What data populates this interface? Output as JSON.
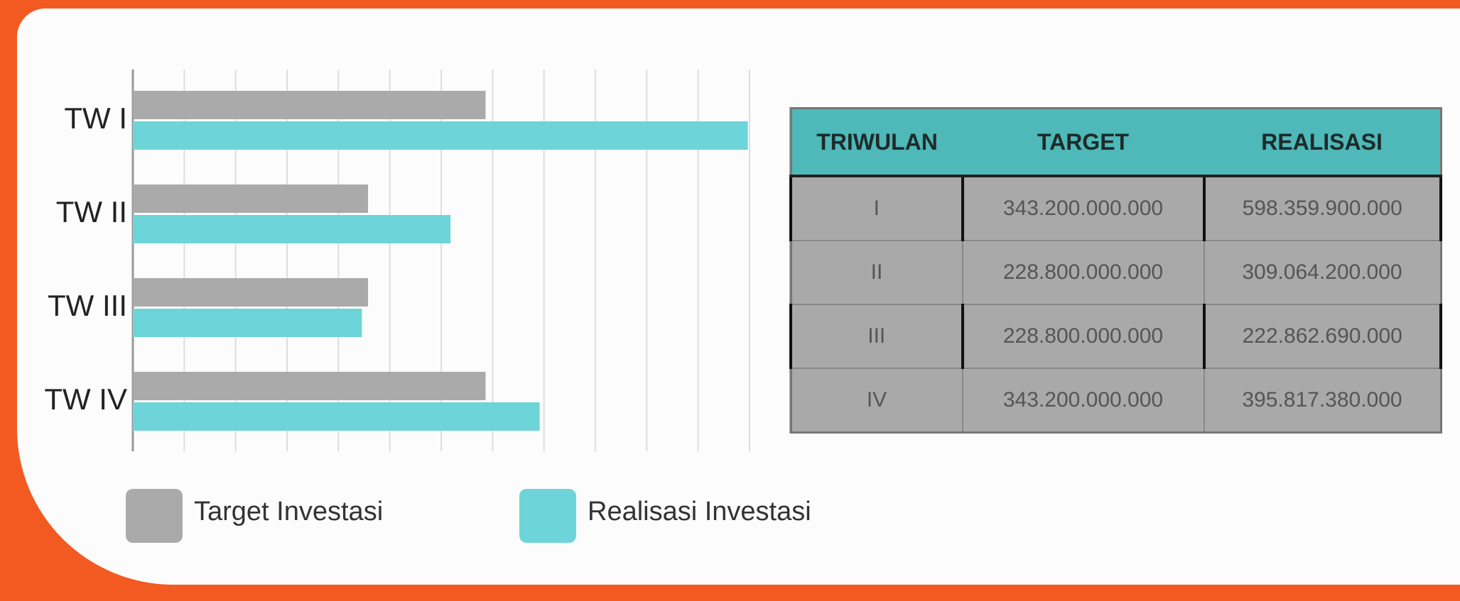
{
  "chart_data": {
    "type": "bar",
    "orientation": "horizontal",
    "categories": [
      "TW I",
      "TW II",
      "TW III",
      "TW IV"
    ],
    "series": [
      {
        "name": "Target Investasi",
        "color": "#aaaaaa",
        "values": [
          343200000000,
          228800000000,
          228800000000,
          343200000000
        ]
      },
      {
        "name": "Realisasi Investasi",
        "color": "#6dd5d9",
        "values": [
          598359900000,
          309064200000,
          222862690000,
          395817380000
        ]
      }
    ],
    "xlim": [
      0,
      600000000000
    ],
    "xticks": [
      0,
      50000000000,
      100000000000,
      150000000000,
      200000000000,
      250000000000,
      300000000000,
      350000000000,
      400000000000,
      450000000000,
      500000000000,
      550000000000,
      600000000000
    ],
    "grid": true,
    "legend": "bottom"
  },
  "table": {
    "headers": [
      "TRIWULAN",
      "TARGET",
      "REALISASI"
    ],
    "rows": [
      [
        "I",
        "343.200.000.000",
        "598.359.900.000"
      ],
      [
        "II",
        "228.800.000.000",
        "309.064.200.000"
      ],
      [
        "III",
        "228.800.000.000",
        "222.862.690.000"
      ],
      [
        "IV",
        "343.200.000.000",
        "395.817.380.000"
      ]
    ]
  }
}
